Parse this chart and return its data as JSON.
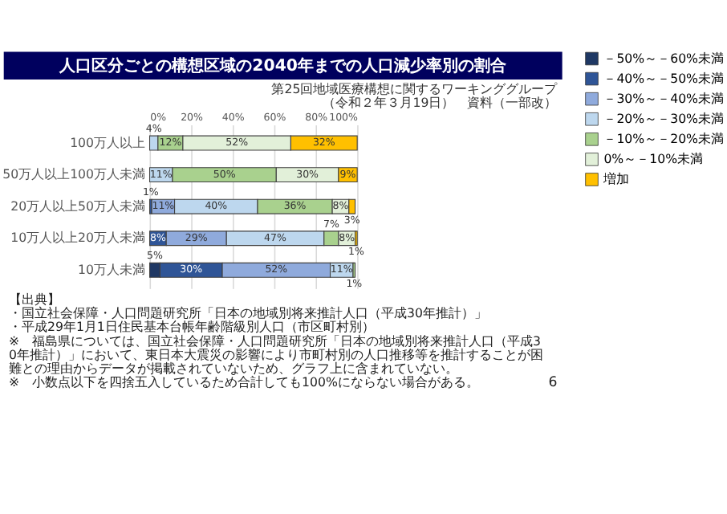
{
  "chart_data": {
    "type": "bar",
    "orientation": "horizontal",
    "stacked": true,
    "title": "人口区分ごとの構想区域の2040年までの人口減少率別の割合",
    "categories": [
      "100万人以上",
      "50万人以上100万人未満",
      "20万人以上50万人未満",
      "10万人以上20万人未満",
      "10万人未満"
    ],
    "series": [
      {
        "name": "－50%～－60%未満",
        "color": "#1f3864",
        "values": [
          null,
          null,
          null,
          null,
          5
        ],
        "value_labels": [
          null,
          null,
          null,
          null,
          "5%"
        ]
      },
      {
        "name": "－40%～－50%未満",
        "color": "#2f5597",
        "values": [
          null,
          null,
          1,
          8,
          30
        ],
        "value_labels": [
          null,
          null,
          "1%",
          "8%",
          "30%"
        ]
      },
      {
        "name": "－30%～－40%未満",
        "color": "#8faadc",
        "values": [
          null,
          null,
          11,
          29,
          52
        ],
        "value_labels": [
          null,
          null,
          "11%",
          "29%",
          "52%"
        ]
      },
      {
        "name": "－20%～－30%未満",
        "color": "#bdd7ee",
        "values": [
          4,
          11,
          40,
          47,
          11
        ],
        "value_labels": [
          "4%",
          "11%",
          "40%",
          "47%",
          "11%"
        ]
      },
      {
        "name": "－10%～－20%未満",
        "color": "#a9d18e",
        "values": [
          12,
          50,
          36,
          7,
          1
        ],
        "value_labels": [
          "12%",
          "50%",
          "36%",
          "7%",
          "1%"
        ]
      },
      {
        "name": "0%～－10%未満",
        "color": "#e2f0d9",
        "values": [
          52,
          30,
          8,
          8,
          null
        ],
        "value_labels": [
          "52%",
          "30%",
          "8%",
          "8%",
          null
        ]
      },
      {
        "name": "増加",
        "color": "#ffc000",
        "values": [
          32,
          9,
          3,
          1,
          null
        ],
        "value_labels": [
          "32%",
          "9%",
          "3%",
          "1%",
          null
        ]
      }
    ],
    "xlim": [
      0,
      100
    ],
    "xticks": [
      {
        "value": 0,
        "label": "0%"
      },
      {
        "value": 20,
        "label": "20%"
      },
      {
        "value": 40,
        "label": "40%"
      },
      {
        "value": 60,
        "label": "60%"
      },
      {
        "value": 80,
        "label": "80%"
      },
      {
        "value": 100,
        "label": "100%"
      }
    ],
    "grid": "x",
    "legend": "right",
    "annotations": [
      "第25回地域医療構想に関するワーキンググループ",
      "（令和２年３月19日）　資料（一部改）",
      "【出典】",
      "・国立社会保障・人口問題研究所「日本の地域別将来推計人口（平成30年推計）」",
      "・平成29年1月1日住民基本台帳年齢階級別人口（市区町村別）",
      "※　福島県については、国立社会保障・人口問題研究所「日本の地域別将来推計人口（平成30年推計）」において、東日本大震災の影響により市町村別の人口推移等を推計することが困難との理由からデータが掲載されていないため、グラフ上に含まれていない。",
      "※　小数点以下を四捨五入しているため合計しても100%にならない場合がある。",
      "6"
    ]
  }
}
